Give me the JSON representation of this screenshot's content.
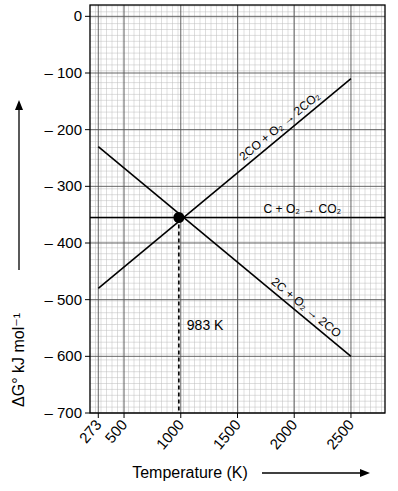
{
  "chart_data": {
    "type": "line",
    "x_label": "Temperature (K)",
    "y_label": "ΔG° kJ mol⁻¹",
    "xlim": [
      200,
      2800
    ],
    "ylim": [
      -700,
      20
    ],
    "xticks": [
      273,
      500,
      1000,
      1500,
      2000,
      2500
    ],
    "yticks": [
      0,
      {
        "value": -100,
        "label": "– 100"
      },
      {
        "value": -200,
        "label": "– 200"
      },
      {
        "value": -300,
        "label": "– 300"
      },
      {
        "value": -400,
        "label": "– 400"
      },
      {
        "value": -500,
        "label": "– 500"
      },
      {
        "value": -600,
        "label": "– 600"
      },
      {
        "value": -700,
        "label": "– 700"
      }
    ],
    "grid": true,
    "series": [
      {
        "name": "2CO + O₂ → 2CO₂",
        "color": "#000000",
        "x": [
          273,
          2500
        ],
        "values": [
          -480,
          -110
        ]
      },
      {
        "name": "C + O₂ → CO₂",
        "color": "#000000",
        "x": [
          200,
          2800
        ],
        "values": [
          -355,
          -355
        ]
      },
      {
        "name": "2C + O₂ → 2CO",
        "color": "#000000",
        "x": [
          273,
          2500
        ],
        "values": [
          -230,
          -600
        ]
      }
    ],
    "annotations": [
      {
        "text": "983 K",
        "x": 983,
        "y": -355
      }
    ]
  }
}
